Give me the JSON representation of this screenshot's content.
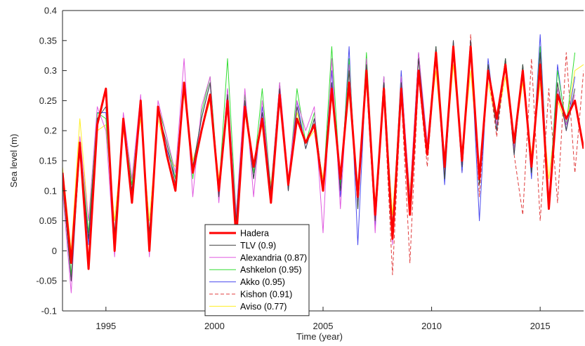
{
  "chart_data": {
    "type": "line",
    "xlabel": "Time (year)",
    "ylabel": "Sea level (m)",
    "xlim": [
      1993,
      2017
    ],
    "ylim": [
      -0.1,
      0.4
    ],
    "x_ticks": [
      1995,
      2000,
      2005,
      2010,
      2015
    ],
    "x_tick_labels": [
      "1995",
      "2000",
      "2005",
      "2010",
      "2015"
    ],
    "y_ticks": [
      -0.1,
      -0.05,
      0,
      0.05,
      0.1,
      0.15,
      0.2,
      0.25,
      0.3,
      0.35,
      0.4
    ],
    "y_tick_labels": [
      "-0.1",
      "-0.05",
      "0",
      "0.05",
      "0.1",
      "0.15",
      "0.2",
      "0.25",
      "0.3",
      "0.35",
      "0.4"
    ],
    "grid": false,
    "legend_position": "bottom-center",
    "series": [
      {
        "name": "Hadera",
        "color": "#ff0000",
        "width": 3,
        "dash": "",
        "x": [
          1993.0,
          1993.4,
          1993.8,
          1994.2,
          1994.6,
          1995.0,
          1995.4,
          1995.8,
          1996.2,
          1996.6,
          1997.0,
          1997.4,
          1997.8,
          1998.2,
          1998.6,
          1999.0,
          1999.4,
          1999.8,
          2000.2,
          2000.6,
          2001.0,
          2001.4,
          2001.8,
          2002.2,
          2002.6,
          2003.0,
          2003.4,
          2003.8,
          2004.2,
          2004.6,
          2005.0,
          2005.4,
          2005.8,
          2006.2,
          2006.6,
          2007.0,
          2007.4,
          2007.8,
          2008.2,
          2008.6,
          2009.0,
          2009.4,
          2009.8,
          2010.2,
          2010.6,
          2011.0,
          2011.4,
          2011.8,
          2012.2,
          2012.6,
          2013.0,
          2013.4,
          2013.8,
          2014.2,
          2014.6,
          2015.0,
          2015.4,
          2015.8,
          2016.2,
          2016.6,
          2017.0
        ],
        "y": [
          0.13,
          -0.02,
          0.18,
          -0.03,
          0.21,
          0.27,
          0.0,
          0.22,
          0.08,
          0.25,
          0.0,
          0.24,
          0.16,
          0.1,
          0.28,
          0.13,
          0.2,
          0.26,
          0.1,
          0.25,
          0.02,
          0.24,
          0.14,
          0.22,
          0.08,
          0.26,
          0.11,
          0.22,
          0.18,
          0.21,
          0.1,
          0.27,
          0.12,
          0.28,
          0.09,
          0.3,
          0.06,
          0.27,
          0.02,
          0.27,
          0.06,
          0.3,
          0.16,
          0.33,
          0.14,
          0.34,
          0.15,
          0.34,
          0.12,
          0.3,
          0.22,
          0.31,
          0.18,
          0.3,
          0.14,
          0.31,
          0.07,
          0.26,
          0.22,
          0.25,
          0.17
        ]
      },
      {
        "name": "TLV (0.9)",
        "color": "#444444",
        "width": 1,
        "dash": "",
        "x": [
          1993.0,
          1993.4,
          1993.8,
          1994.2,
          1994.6,
          1995.0,
          1995.4,
          1995.8,
          1996.2,
          1996.6,
          1997.0,
          1997.4,
          1997.8,
          1998.2,
          1998.6,
          1999.0,
          1999.4,
          1999.8,
          2000.2,
          2000.6,
          2001.0,
          2001.4,
          2001.8,
          2002.2,
          2002.6,
          2003.0,
          2003.4,
          2003.8,
          2004.2,
          2004.6,
          2005.0,
          2005.4,
          2005.8,
          2006.2,
          2006.6,
          2007.0,
          2007.4,
          2007.8,
          2008.2,
          2008.6,
          2009.0,
          2009.4,
          2009.8,
          2010.2,
          2010.6,
          2011.0,
          2011.4,
          2011.8,
          2012.2,
          2012.6,
          2013.0,
          2013.4,
          2013.8,
          2014.2,
          2014.6,
          2015.0,
          2015.4,
          2015.8,
          2016.2,
          2016.6
        ],
        "y": [
          0.12,
          -0.05,
          0.17,
          0.02,
          0.22,
          0.24,
          0.03,
          0.21,
          0.1,
          0.24,
          0.03,
          0.23,
          0.18,
          0.11,
          0.27,
          0.14,
          0.22,
          0.28,
          0.09,
          0.26,
          0.05,
          0.25,
          0.12,
          0.23,
          0.1,
          0.27,
          0.1,
          0.24,
          0.17,
          0.22,
          0.11,
          0.28,
          0.1,
          0.3,
          0.07,
          0.31,
          0.05,
          0.28,
          0.04,
          0.28,
          0.08,
          0.32,
          0.17,
          0.34,
          0.12,
          0.35,
          0.14,
          0.35,
          0.11,
          0.31,
          0.2,
          0.32,
          0.16,
          0.31,
          0.13,
          0.33,
          0.08,
          0.28,
          0.2,
          0.27
        ]
      },
      {
        "name": "Alexandria (0.87)",
        "color": "#e05ae0",
        "width": 1,
        "dash": "",
        "x": [
          1993.0,
          1993.4,
          1993.8,
          1994.2,
          1994.6,
          1995.0,
          1995.4,
          1995.8,
          1996.2,
          1996.6,
          1997.0,
          1997.4,
          1997.8,
          1998.2,
          1998.6,
          1999.0,
          1999.4,
          1999.8,
          2000.2,
          2000.6,
          2001.0,
          2001.4,
          2001.8,
          2002.2,
          2002.6,
          2003.0,
          2003.4,
          2003.8,
          2004.2,
          2004.6,
          2005.0,
          2005.4,
          2005.8,
          2006.2,
          2006.6,
          2007.0,
          2007.4,
          2007.8,
          2008.2,
          2008.6,
          2009.0,
          2009.4,
          2009.8,
          2010.2,
          2010.6,
          2011.0,
          2011.4,
          2011.8,
          2012.2,
          2012.6,
          2013.0,
          2013.4,
          2013.8,
          2014.2,
          2014.6,
          2015.0,
          2015.4,
          2015.8,
          2016.2,
          2016.6
        ],
        "y": [
          0.1,
          -0.07,
          0.19,
          0.05,
          0.24,
          0.2,
          -0.01,
          0.23,
          0.12,
          0.26,
          -0.01,
          0.25,
          0.19,
          0.13,
          0.32,
          0.09,
          0.24,
          0.29,
          0.08,
          0.27,
          0.06,
          0.27,
          0.09,
          0.25,
          0.1,
          0.28,
          0.12,
          0.25,
          0.2,
          0.24,
          0.03,
          0.32,
          0.07,
          0.31,
          0.08,
          0.32,
          0.03,
          0.29,
          0.01,
          0.29,
          0.09,
          0.33,
          0.18,
          0.33,
          0.13,
          0.34,
          0.16,
          0.33,
          0.12,
          0.3,
          0.21,
          0.31,
          0.17,
          0.3,
          0.15,
          0.32,
          0.09,
          0.27,
          0.21,
          0.26
        ]
      },
      {
        "name": "Ashkelon (0.95)",
        "color": "#33dd33",
        "width": 1,
        "dash": "",
        "x": [
          1993.0,
          1993.4,
          1993.8,
          1994.2,
          1994.6,
          1995.0,
          1995.4,
          1995.8,
          1996.2,
          1996.6,
          1997.0,
          1997.4,
          1997.8,
          1998.2,
          1998.6,
          1999.0,
          1999.4,
          1999.8,
          2000.2,
          2000.6,
          2001.0,
          2001.4,
          2001.8,
          2002.2,
          2002.6,
          2003.0,
          2003.4,
          2003.8,
          2004.2,
          2004.6,
          2005.0,
          2005.4,
          2005.8,
          2006.2,
          2006.6,
          2007.0,
          2007.4,
          2007.8,
          2008.2,
          2008.6,
          2009.0,
          2009.4,
          2009.8,
          2010.2,
          2010.6,
          2011.0,
          2011.4,
          2011.8,
          2012.2,
          2012.6,
          2013.0,
          2013.4,
          2013.8,
          2014.2,
          2014.6,
          2015.0,
          2015.4,
          2015.8,
          2016.2,
          2016.6
        ],
        "y": [
          0.11,
          -0.04,
          0.18,
          0.03,
          0.23,
          0.22,
          0.02,
          0.22,
          0.11,
          0.25,
          0.02,
          0.24,
          0.19,
          0.12,
          0.28,
          0.12,
          0.23,
          0.29,
          0.1,
          0.32,
          0.06,
          0.26,
          0.13,
          0.27,
          0.1,
          0.28,
          0.11,
          0.27,
          0.18,
          0.23,
          0.1,
          0.34,
          0.11,
          0.32,
          0.07,
          0.33,
          0.05,
          0.29,
          0.04,
          0.29,
          0.08,
          0.33,
          0.17,
          0.34,
          0.12,
          0.34,
          0.15,
          0.34,
          0.11,
          0.31,
          0.21,
          0.32,
          0.17,
          0.31,
          0.13,
          0.34,
          0.08,
          0.3,
          0.21,
          0.33
        ]
      },
      {
        "name": "Akko (0.95)",
        "color": "#4a4aee",
        "width": 1,
        "dash": "",
        "x": [
          1993.0,
          1993.4,
          1993.8,
          1994.2,
          1994.6,
          1995.0,
          1995.4,
          1995.8,
          1996.2,
          1996.6,
          1997.0,
          1997.4,
          1997.8,
          1998.2,
          1998.6,
          1999.0,
          1999.4,
          1999.8,
          2000.2,
          2000.6,
          2001.0,
          2001.4,
          2001.8,
          2002.2,
          2002.6,
          2003.0,
          2003.4,
          2003.8,
          2004.2,
          2004.6,
          2005.0,
          2005.4,
          2005.8,
          2006.2,
          2006.6,
          2007.0,
          2007.4,
          2007.8,
          2008.2,
          2008.6,
          2009.0,
          2009.4,
          2009.8,
          2010.2,
          2010.6,
          2011.0,
          2011.4,
          2011.8,
          2012.2,
          2012.6,
          2013.0,
          2013.4,
          2013.8,
          2014.2,
          2014.6,
          2015.0,
          2015.4,
          2015.8,
          2016.2,
          2016.6
        ],
        "y": [
          0.12,
          -0.05,
          0.18,
          0.01,
          0.23,
          0.23,
          0.02,
          0.22,
          0.1,
          0.24,
          0.02,
          0.24,
          0.17,
          0.12,
          0.28,
          0.13,
          0.22,
          0.28,
          0.09,
          0.27,
          0.04,
          0.25,
          0.12,
          0.24,
          0.09,
          0.27,
          0.1,
          0.25,
          0.17,
          0.22,
          0.1,
          0.3,
          0.09,
          0.34,
          0.01,
          0.31,
          0.04,
          0.29,
          0.02,
          0.3,
          0.07,
          0.33,
          0.16,
          0.34,
          0.11,
          0.35,
          0.13,
          0.35,
          0.05,
          0.32,
          0.2,
          0.32,
          0.16,
          0.31,
          0.12,
          0.36,
          0.07,
          0.31,
          0.2,
          0.29
        ]
      },
      {
        "name": "Kishon (0.91)",
        "color": "#e03c3c",
        "width": 1,
        "dash": "5,3",
        "x": [
          2007.0,
          2007.4,
          2007.8,
          2008.2,
          2008.6,
          2009.0,
          2009.4,
          2009.8,
          2010.2,
          2010.6,
          2011.0,
          2011.4,
          2011.8,
          2012.2,
          2012.6,
          2013.0,
          2013.4,
          2013.8,
          2014.2,
          2014.6,
          2015.0,
          2015.4,
          2015.8,
          2016.2,
          2016.6,
          2017.0
        ],
        "y": [
          0.28,
          0.04,
          0.26,
          -0.04,
          0.26,
          -0.02,
          0.29,
          0.14,
          0.33,
          0.12,
          0.34,
          0.13,
          0.36,
          0.09,
          0.3,
          0.19,
          0.31,
          0.16,
          0.06,
          0.32,
          0.05,
          0.27,
          0.08,
          0.33,
          0.13,
          0.3
        ]
      },
      {
        "name": "Aviso (0.77)",
        "color": "#ffee22",
        "width": 1,
        "dash": "",
        "x": [
          1993.0,
          1993.4,
          1993.8,
          1994.2,
          1994.6,
          1995.0,
          1995.4,
          1995.8,
          1996.2,
          1996.6,
          1997.0,
          1997.4,
          1997.8,
          1998.2,
          1998.6,
          1999.0,
          1999.4,
          1999.8,
          2000.2,
          2000.6,
          2001.0,
          2001.4,
          2001.8,
          2002.2,
          2002.6,
          2003.0,
          2003.4,
          2003.8,
          2004.2,
          2004.6,
          2005.0,
          2005.4,
          2005.8,
          2006.2,
          2006.6,
          2007.0,
          2007.4,
          2007.8,
          2008.2,
          2008.6,
          2009.0,
          2009.4,
          2009.8,
          2010.2,
          2010.6,
          2011.0,
          2011.4,
          2011.8,
          2012.2,
          2012.6,
          2013.0,
          2013.4,
          2013.8,
          2014.2,
          2014.6,
          2015.0,
          2015.4,
          2015.8,
          2016.2,
          2016.6,
          2017.0
        ],
        "y": [
          0.14,
          0.0,
          0.22,
          0.05,
          0.2,
          0.21,
          0.05,
          0.2,
          0.12,
          0.22,
          0.05,
          0.22,
          0.16,
          0.14,
          0.26,
          0.15,
          0.2,
          0.25,
          0.12,
          0.24,
          0.06,
          0.23,
          0.14,
          0.21,
          0.11,
          0.25,
          0.12,
          0.23,
          0.18,
          0.2,
          0.12,
          0.26,
          0.13,
          0.26,
          0.11,
          0.28,
          0.08,
          0.26,
          0.06,
          0.26,
          0.1,
          0.29,
          0.18,
          0.3,
          0.14,
          0.31,
          0.16,
          0.3,
          0.13,
          0.28,
          0.21,
          0.29,
          0.18,
          0.28,
          0.16,
          0.28,
          0.12,
          0.25,
          0.21,
          0.3,
          0.31
        ]
      }
    ]
  }
}
